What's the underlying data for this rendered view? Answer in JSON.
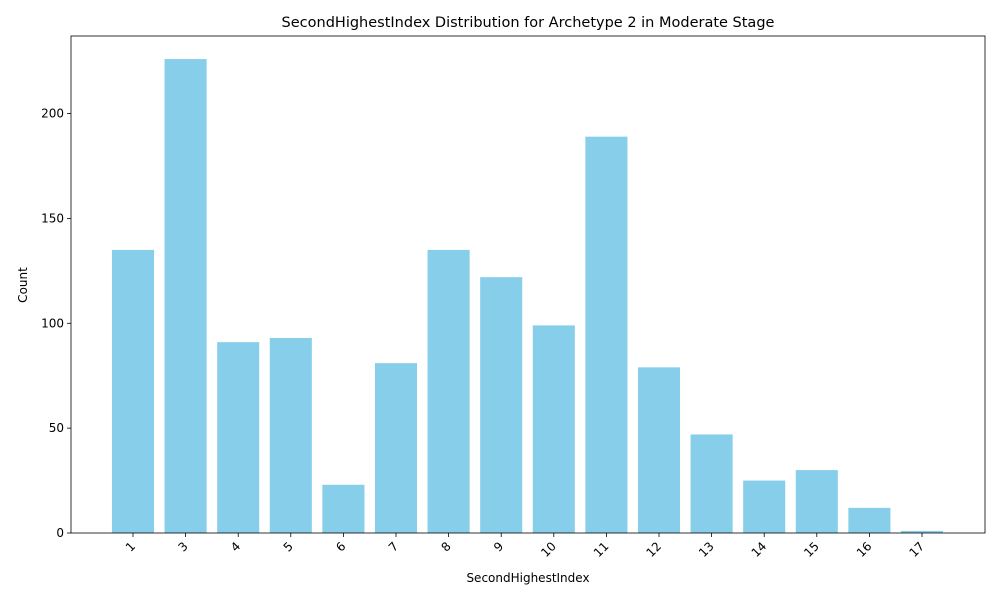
{
  "chart_data": {
    "type": "bar",
    "title": "SecondHighestIndex Distribution for Archetype 2 in Moderate Stage",
    "xlabel": "SecondHighestIndex",
    "ylabel": "Count",
    "categories": [
      "1",
      "3",
      "4",
      "5",
      "6",
      "7",
      "8",
      "9",
      "10",
      "11",
      "12",
      "13",
      "14",
      "15",
      "16",
      "17"
    ],
    "values": [
      135,
      226,
      91,
      93,
      23,
      81,
      135,
      122,
      99,
      189,
      79,
      47,
      25,
      30,
      12,
      1
    ],
    "ylim": [
      0,
      237
    ],
    "yticks": [
      0,
      50,
      100,
      150,
      200
    ],
    "bar_color": "#87ceeb",
    "grid": false,
    "legend": "none"
  }
}
